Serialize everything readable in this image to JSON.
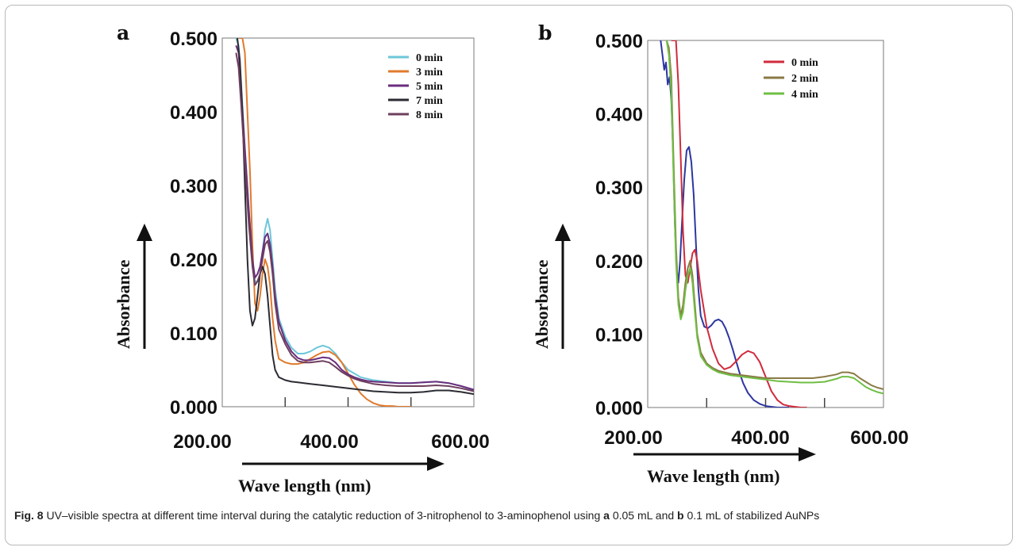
{
  "chart_data": [
    {
      "type": "line",
      "panel": "a",
      "xlim": [
        200,
        600
      ],
      "ylim": [
        0,
        0.5
      ],
      "x_ticks": [
        "200.00",
        "400.00",
        "600.00"
      ],
      "y_ticks": [
        "0.000",
        "0.100",
        "0.200",
        "0.300",
        "0.400",
        "0.500"
      ],
      "xlabel": "Wave length (nm)",
      "ylabel": "Absorbance",
      "legend_position": "top-right",
      "series": [
        {
          "name": "0 min",
          "color": "#6cc7d9",
          "x": [
            222,
            226,
            230,
            236,
            242,
            248,
            252,
            256,
            260,
            264,
            268,
            272,
            276,
            280,
            284,
            290,
            300,
            310,
            320,
            330,
            340,
            350,
            360,
            370,
            380,
            390,
            400,
            410,
            420,
            430,
            440,
            460,
            480,
            500,
            520,
            540,
            560,
            580,
            600
          ],
          "y": [
            0.5,
            0.49,
            0.44,
            0.35,
            0.27,
            0.2,
            0.17,
            0.17,
            0.18,
            0.21,
            0.24,
            0.255,
            0.24,
            0.2,
            0.16,
            0.12,
            0.095,
            0.08,
            0.072,
            0.072,
            0.075,
            0.08,
            0.083,
            0.08,
            0.072,
            0.06,
            0.05,
            0.045,
            0.04,
            0.038,
            0.036,
            0.034,
            0.032,
            0.032,
            0.033,
            0.034,
            0.032,
            0.028,
            0.022
          ]
        },
        {
          "name": "3 min",
          "color": "#e07a2c",
          "x": [
            226,
            228,
            232,
            236,
            240,
            244,
            248,
            252,
            256,
            260,
            264,
            268,
            272,
            276,
            280,
            284,
            290,
            300,
            310,
            320,
            330,
            340,
            350,
            360,
            370,
            380,
            390,
            400,
            410,
            420,
            430,
            440,
            450,
            460,
            470,
            480,
            490,
            500
          ],
          "y": [
            0.5,
            0.5,
            0.5,
            0.48,
            0.4,
            0.32,
            0.22,
            0.14,
            0.13,
            0.15,
            0.18,
            0.2,
            0.19,
            0.165,
            0.12,
            0.09,
            0.065,
            0.06,
            0.058,
            0.058,
            0.06,
            0.065,
            0.07,
            0.074,
            0.075,
            0.07,
            0.06,
            0.045,
            0.03,
            0.018,
            0.01,
            0.005,
            0.002,
            0.001,
            0.001,
            0.0,
            0.0,
            0.0
          ]
        },
        {
          "name": "5 min",
          "color": "#6a2d7d",
          "x": [
            222,
            226,
            230,
            236,
            242,
            248,
            252,
            256,
            260,
            264,
            268,
            272,
            276,
            280,
            284,
            290,
            300,
            310,
            320,
            330,
            340,
            350,
            360,
            370,
            380,
            390,
            400,
            410,
            420,
            430,
            440,
            460,
            480,
            500,
            520,
            540,
            560,
            580,
            600
          ],
          "y": [
            0.49,
            0.48,
            0.43,
            0.35,
            0.27,
            0.2,
            0.175,
            0.18,
            0.19,
            0.21,
            0.23,
            0.235,
            0.22,
            0.19,
            0.15,
            0.115,
            0.09,
            0.075,
            0.066,
            0.063,
            0.063,
            0.065,
            0.067,
            0.066,
            0.06,
            0.05,
            0.044,
            0.04,
            0.037,
            0.035,
            0.034,
            0.033,
            0.032,
            0.032,
            0.033,
            0.034,
            0.032,
            0.028,
            0.023
          ]
        },
        {
          "name": "7 min",
          "color": "#2b2b33",
          "x": [
            224,
            228,
            232,
            236,
            240,
            244,
            248,
            252,
            256,
            260,
            264,
            268,
            272,
            276,
            280,
            284,
            290,
            300,
            310,
            320,
            330,
            340,
            350,
            360,
            380,
            400,
            420,
            440,
            460,
            480,
            500,
            520,
            540,
            560,
            580,
            600
          ],
          "y": [
            0.5,
            0.47,
            0.4,
            0.3,
            0.2,
            0.13,
            0.11,
            0.12,
            0.15,
            0.18,
            0.19,
            0.18,
            0.15,
            0.11,
            0.07,
            0.05,
            0.04,
            0.036,
            0.034,
            0.033,
            0.032,
            0.031,
            0.03,
            0.029,
            0.027,
            0.025,
            0.023,
            0.021,
            0.02,
            0.019,
            0.019,
            0.02,
            0.022,
            0.022,
            0.02,
            0.017
          ]
        },
        {
          "name": "8 min",
          "color": "#6e3f5e",
          "x": [
            222,
            226,
            230,
            236,
            242,
            248,
            252,
            256,
            260,
            264,
            268,
            272,
            276,
            280,
            284,
            290,
            300,
            310,
            320,
            330,
            340,
            350,
            360,
            370,
            380,
            390,
            400,
            410,
            420,
            430,
            440,
            460,
            480,
            500,
            520,
            540,
            560,
            580,
            600
          ],
          "y": [
            0.48,
            0.46,
            0.41,
            0.33,
            0.25,
            0.19,
            0.165,
            0.17,
            0.18,
            0.2,
            0.22,
            0.225,
            0.21,
            0.18,
            0.14,
            0.105,
            0.085,
            0.07,
            0.062,
            0.06,
            0.06,
            0.061,
            0.062,
            0.06,
            0.054,
            0.047,
            0.042,
            0.038,
            0.035,
            0.033,
            0.031,
            0.029,
            0.028,
            0.028,
            0.028,
            0.029,
            0.028,
            0.025,
            0.021
          ]
        }
      ]
    },
    {
      "type": "line",
      "panel": "b",
      "xlim": [
        200,
        600
      ],
      "ylim": [
        0,
        0.5
      ],
      "x_ticks": [
        "200.00",
        "400.00",
        "600.00"
      ],
      "y_ticks": [
        "0.000",
        "0.100",
        "0.200",
        "0.300",
        "0.400",
        "0.500"
      ],
      "xlabel": "Wave length (nm)",
      "ylabel": "Absorbance",
      "legend_position": "top-right",
      "series": [
        {
          "name": "0 min",
          "color": "#d12a3c",
          "x": [
            240,
            244,
            248,
            252,
            256,
            260,
            264,
            268,
            272,
            276,
            280,
            284,
            290,
            300,
            310,
            320,
            330,
            340,
            350,
            360,
            370,
            380,
            390,
            400,
            410,
            420,
            430,
            440,
            450,
            460,
            470
          ],
          "y": [
            0.5,
            0.5,
            0.5,
            0.44,
            0.34,
            0.24,
            0.18,
            0.17,
            0.19,
            0.21,
            0.215,
            0.2,
            0.16,
            0.11,
            0.08,
            0.06,
            0.052,
            0.055,
            0.063,
            0.072,
            0.077,
            0.074,
            0.062,
            0.042,
            0.022,
            0.01,
            0.004,
            0.002,
            0.001,
            0.0,
            0.0
          ]
        },
        {
          "name": "2 min",
          "color": "#8a7a45",
          "x": [
            232,
            236,
            240,
            244,
            248,
            252,
            256,
            260,
            264,
            268,
            272,
            276,
            280,
            284,
            290,
            300,
            310,
            320,
            330,
            340,
            350,
            360,
            380,
            400,
            420,
            440,
            460,
            480,
            500,
            520,
            530,
            540,
            550,
            560,
            570,
            580,
            590,
            600
          ],
          "y": [
            0.5,
            0.49,
            0.45,
            0.33,
            0.22,
            0.15,
            0.125,
            0.14,
            0.17,
            0.19,
            0.2,
            0.18,
            0.14,
            0.1,
            0.075,
            0.06,
            0.054,
            0.05,
            0.048,
            0.046,
            0.045,
            0.044,
            0.042,
            0.04,
            0.04,
            0.04,
            0.04,
            0.04,
            0.042,
            0.045,
            0.048,
            0.048,
            0.046,
            0.04,
            0.035,
            0.03,
            0.027,
            0.025
          ]
        },
        {
          "name": "4 min",
          "color": "#6fbe44",
          "x": [
            232,
            236,
            240,
            244,
            248,
            252,
            256,
            260,
            264,
            268,
            272,
            276,
            280,
            284,
            290,
            300,
            310,
            320,
            330,
            340,
            350,
            360,
            380,
            400,
            420,
            440,
            460,
            480,
            500,
            520,
            530,
            540,
            550,
            560,
            570,
            580,
            590,
            600
          ],
          "y": [
            0.5,
            0.48,
            0.43,
            0.31,
            0.2,
            0.14,
            0.12,
            0.13,
            0.16,
            0.18,
            0.19,
            0.17,
            0.13,
            0.095,
            0.07,
            0.058,
            0.052,
            0.048,
            0.046,
            0.044,
            0.043,
            0.042,
            0.04,
            0.038,
            0.036,
            0.035,
            0.034,
            0.034,
            0.035,
            0.039,
            0.042,
            0.042,
            0.04,
            0.034,
            0.028,
            0.024,
            0.021,
            0.019
          ]
        }
      ],
      "unlabeled_series": [
        {
          "color": "#2d37a0",
          "x": [
            222,
            225,
            228,
            231,
            234,
            237,
            240,
            243,
            246,
            249,
            252,
            255,
            258,
            262,
            266,
            270,
            274,
            278,
            282,
            286,
            290,
            296,
            302,
            308,
            314,
            320,
            326,
            332,
            338,
            344,
            350,
            356,
            362,
            370,
            380,
            390,
            400,
            410,
            420,
            430,
            440
          ],
          "y": [
            0.5,
            0.48,
            0.46,
            0.47,
            0.44,
            0.45,
            0.42,
            0.35,
            0.25,
            0.19,
            0.17,
            0.2,
            0.25,
            0.31,
            0.35,
            0.355,
            0.335,
            0.29,
            0.22,
            0.16,
            0.125,
            0.11,
            0.108,
            0.112,
            0.118,
            0.12,
            0.117,
            0.108,
            0.095,
            0.08,
            0.063,
            0.047,
            0.033,
            0.02,
            0.01,
            0.005,
            0.002,
            0.001,
            0.0,
            0.0,
            0.0
          ]
        }
      ]
    }
  ],
  "figure": {
    "panel_a_letter": "a",
    "panel_b_letter": "b",
    "caption_label": "Fig. 8",
    "caption_text_1": " UV–visible spectra at different time interval during the catalytic reduction of 3-nitrophenol to 3-aminophenol using ",
    "caption_bold_a": "a",
    "caption_text_2": " 0.05 mL and ",
    "caption_bold_b": "b",
    "caption_text_3": " 0.1 mL of stabilized AuNPs"
  }
}
